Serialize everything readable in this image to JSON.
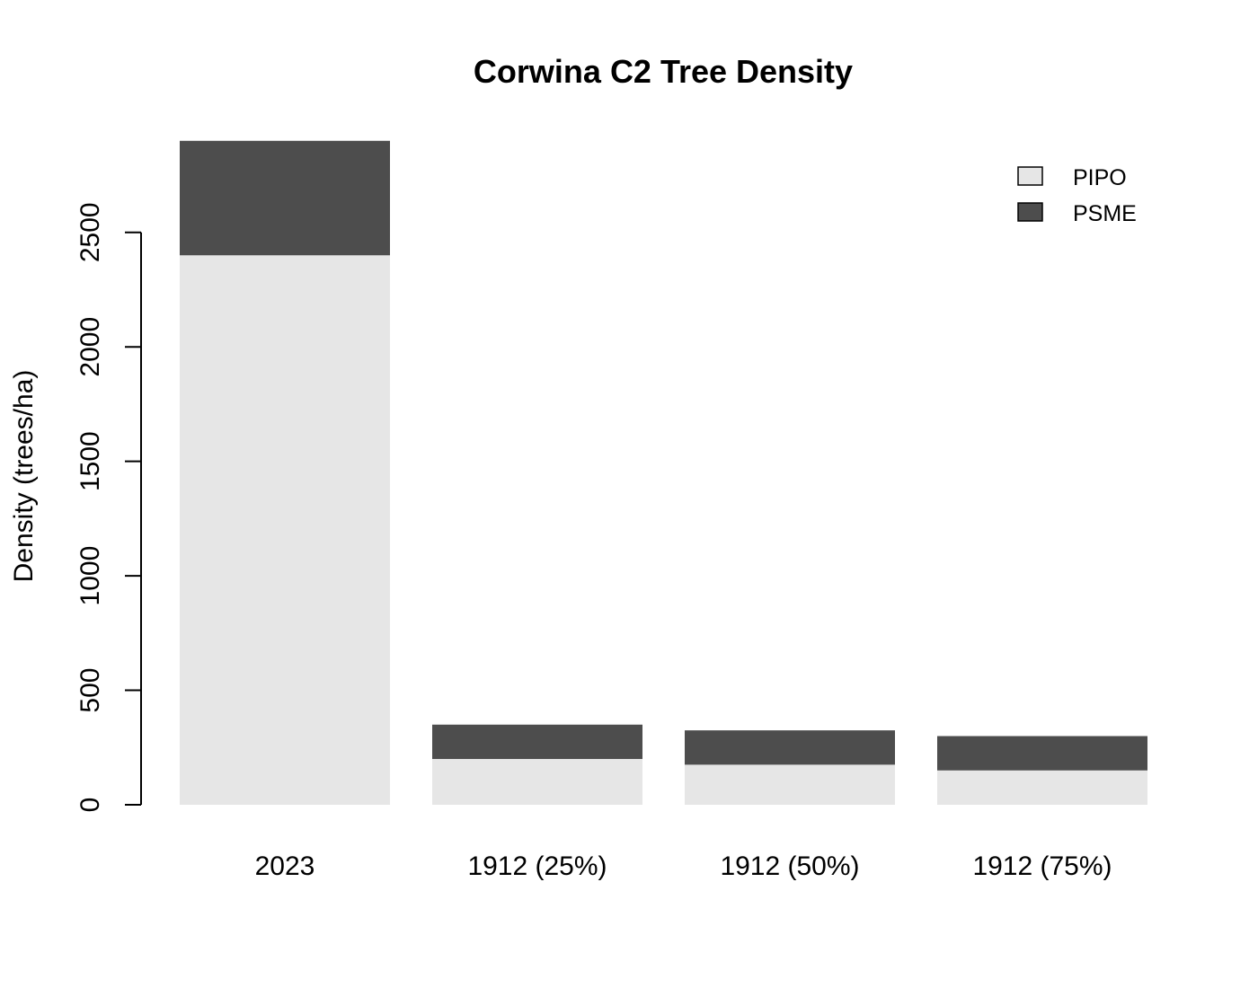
{
  "chart_data": {
    "type": "bar",
    "stacked": true,
    "title": "Corwina C2 Tree Density",
    "xlabel": "",
    "ylabel": "Density (trees/ha)",
    "categories": [
      "2023",
      "1912 (25%)",
      "1912 (50%)",
      "1912 (75%)"
    ],
    "series": [
      {
        "name": "PIPO",
        "color": "#e6e6e6",
        "values": [
          2400,
          200,
          175,
          150
        ]
      },
      {
        "name": "PSME",
        "color": "#4d4d4d",
        "values": [
          500,
          150,
          150,
          150
        ]
      }
    ],
    "yticks": [
      "0",
      "500",
      "1000",
      "1500",
      "2000",
      "2500"
    ],
    "ylim": [
      0,
      2900
    ],
    "grid": false,
    "legend_position": "top-right"
  }
}
